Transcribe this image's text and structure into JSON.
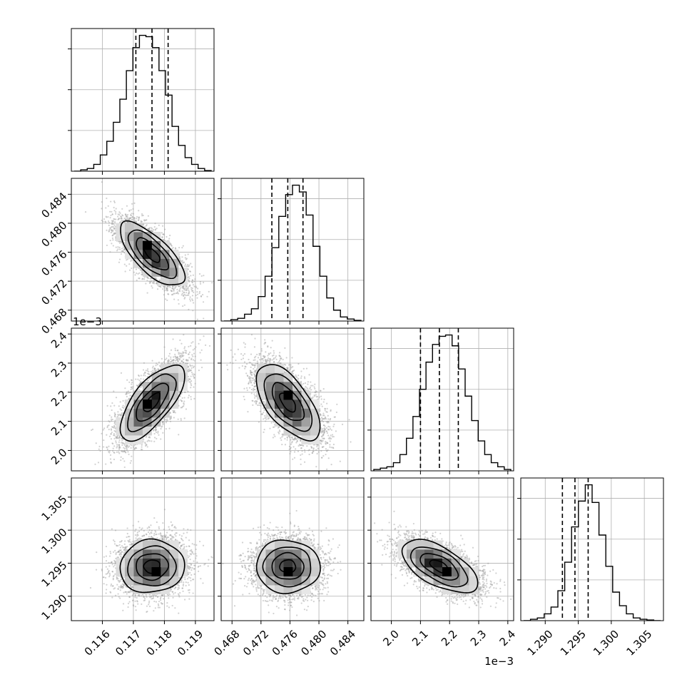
{
  "chart_data": {
    "type": "corner",
    "title": "",
    "parameters": [
      {
        "range": [
          0.115,
          0.1196
        ],
        "ticks": [
          0.116,
          0.117,
          0.118,
          0.119
        ],
        "tick_labels": [
          "0.116",
          "0.117",
          "0.118",
          "0.119"
        ],
        "offset_text": "",
        "quantiles": [
          0.11708,
          0.1176,
          0.11812
        ],
        "histogram": [
          0.0,
          0.01,
          0.02,
          0.05,
          0.12,
          0.22,
          0.36,
          0.53,
          0.74,
          0.91,
          1.0,
          0.99,
          0.91,
          0.74,
          0.56,
          0.33,
          0.19,
          0.1,
          0.05,
          0.02,
          0.005
        ]
      },
      {
        "range": [
          0.4665,
          0.4862
        ],
        "ticks": [
          0.468,
          0.472,
          0.476,
          0.48,
          0.484
        ],
        "tick_labels": [
          "0.468",
          "0.472",
          "0.476",
          "0.480",
          "0.484"
        ],
        "offset_text": "",
        "quantiles": [
          0.4735,
          0.4757,
          0.4778
        ],
        "histogram": [
          0.0,
          0.01,
          0.02,
          0.05,
          0.09,
          0.18,
          0.33,
          0.54,
          0.77,
          0.93,
          1.0,
          0.95,
          0.78,
          0.55,
          0.33,
          0.17,
          0.08,
          0.03,
          0.015,
          0.005
        ]
      },
      {
        "range": [
          1.93,
          2.42
        ],
        "ticks": [
          2.0,
          2.1,
          2.2,
          2.3,
          2.4
        ],
        "tick_labels": [
          "2.0",
          "2.1",
          "2.2",
          "2.3",
          "2.4"
        ],
        "offset_text": "1e−3",
        "quantiles": [
          2.1,
          2.165,
          2.23
        ],
        "histogram": [
          0.01,
          0.02,
          0.03,
          0.06,
          0.12,
          0.24,
          0.4,
          0.6,
          0.8,
          0.93,
          0.99,
          1.0,
          0.92,
          0.75,
          0.55,
          0.37,
          0.22,
          0.12,
          0.06,
          0.03,
          0.01
        ]
      },
      {
        "range": [
          1.2863,
          1.3079
        ],
        "ticks": [
          1.29,
          1.295,
          1.3,
          1.305
        ],
        "tick_labels": [
          "1.290",
          "1.295",
          "1.300",
          "1.305"
        ],
        "offset_text": "",
        "quantiles": [
          1.2926,
          1.2945,
          1.2965
        ],
        "histogram": [
          0.0,
          0.01,
          0.02,
          0.05,
          0.1,
          0.22,
          0.43,
          0.69,
          0.88,
          1.0,
          0.87,
          0.63,
          0.4,
          0.21,
          0.11,
          0.05,
          0.02,
          0.01,
          0.005,
          0.0
        ]
      }
    ],
    "pairs": [
      {
        "x": 0,
        "y": 1,
        "mean": [
          0.1176,
          0.4757
        ],
        "sigma": [
          0.00052,
          0.0022
        ],
        "correlation": -0.72,
        "peak": [
          0.11755,
          0.4764
        ]
      },
      {
        "x": 0,
        "y": 2,
        "mean": [
          0.1176,
          2.165
        ],
        "sigma": [
          0.00052,
          0.065
        ],
        "correlation": 0.7,
        "peak": [
          0.11758,
          2.162
        ]
      },
      {
        "x": 1,
        "y": 2,
        "mean": [
          0.4757,
          2.165
        ],
        "sigma": [
          0.0022,
          0.065
        ],
        "correlation": -0.62,
        "peak": [
          0.4757,
          2.18
        ]
      },
      {
        "x": 0,
        "y": 3,
        "mean": [
          0.1176,
          1.2945
        ],
        "sigma": [
          0.00052,
          0.002
        ],
        "correlation": 0.05,
        "peak": [
          0.1178,
          1.294
        ]
      },
      {
        "x": 1,
        "y": 3,
        "mean": [
          0.4757,
          1.2945
        ],
        "sigma": [
          0.0022,
          0.002
        ],
        "correlation": -0.02,
        "peak": [
          0.4757,
          1.2941
        ]
      },
      {
        "x": 2,
        "y": 3,
        "mean": [
          2.165,
          1.2945
        ],
        "sigma": [
          0.065,
          0.002
        ],
        "correlation": -0.6,
        "peak": [
          2.18,
          1.2941
        ]
      }
    ],
    "contour_levels_sigma": [
      0.5,
      1.0,
      1.5,
      2.0
    ],
    "grid": true,
    "colors": {
      "line": "#000000",
      "grid": "#b0b0b0",
      "scatter": "#9a9a9a",
      "density_max": "#000000",
      "background": "#ffffff"
    }
  }
}
